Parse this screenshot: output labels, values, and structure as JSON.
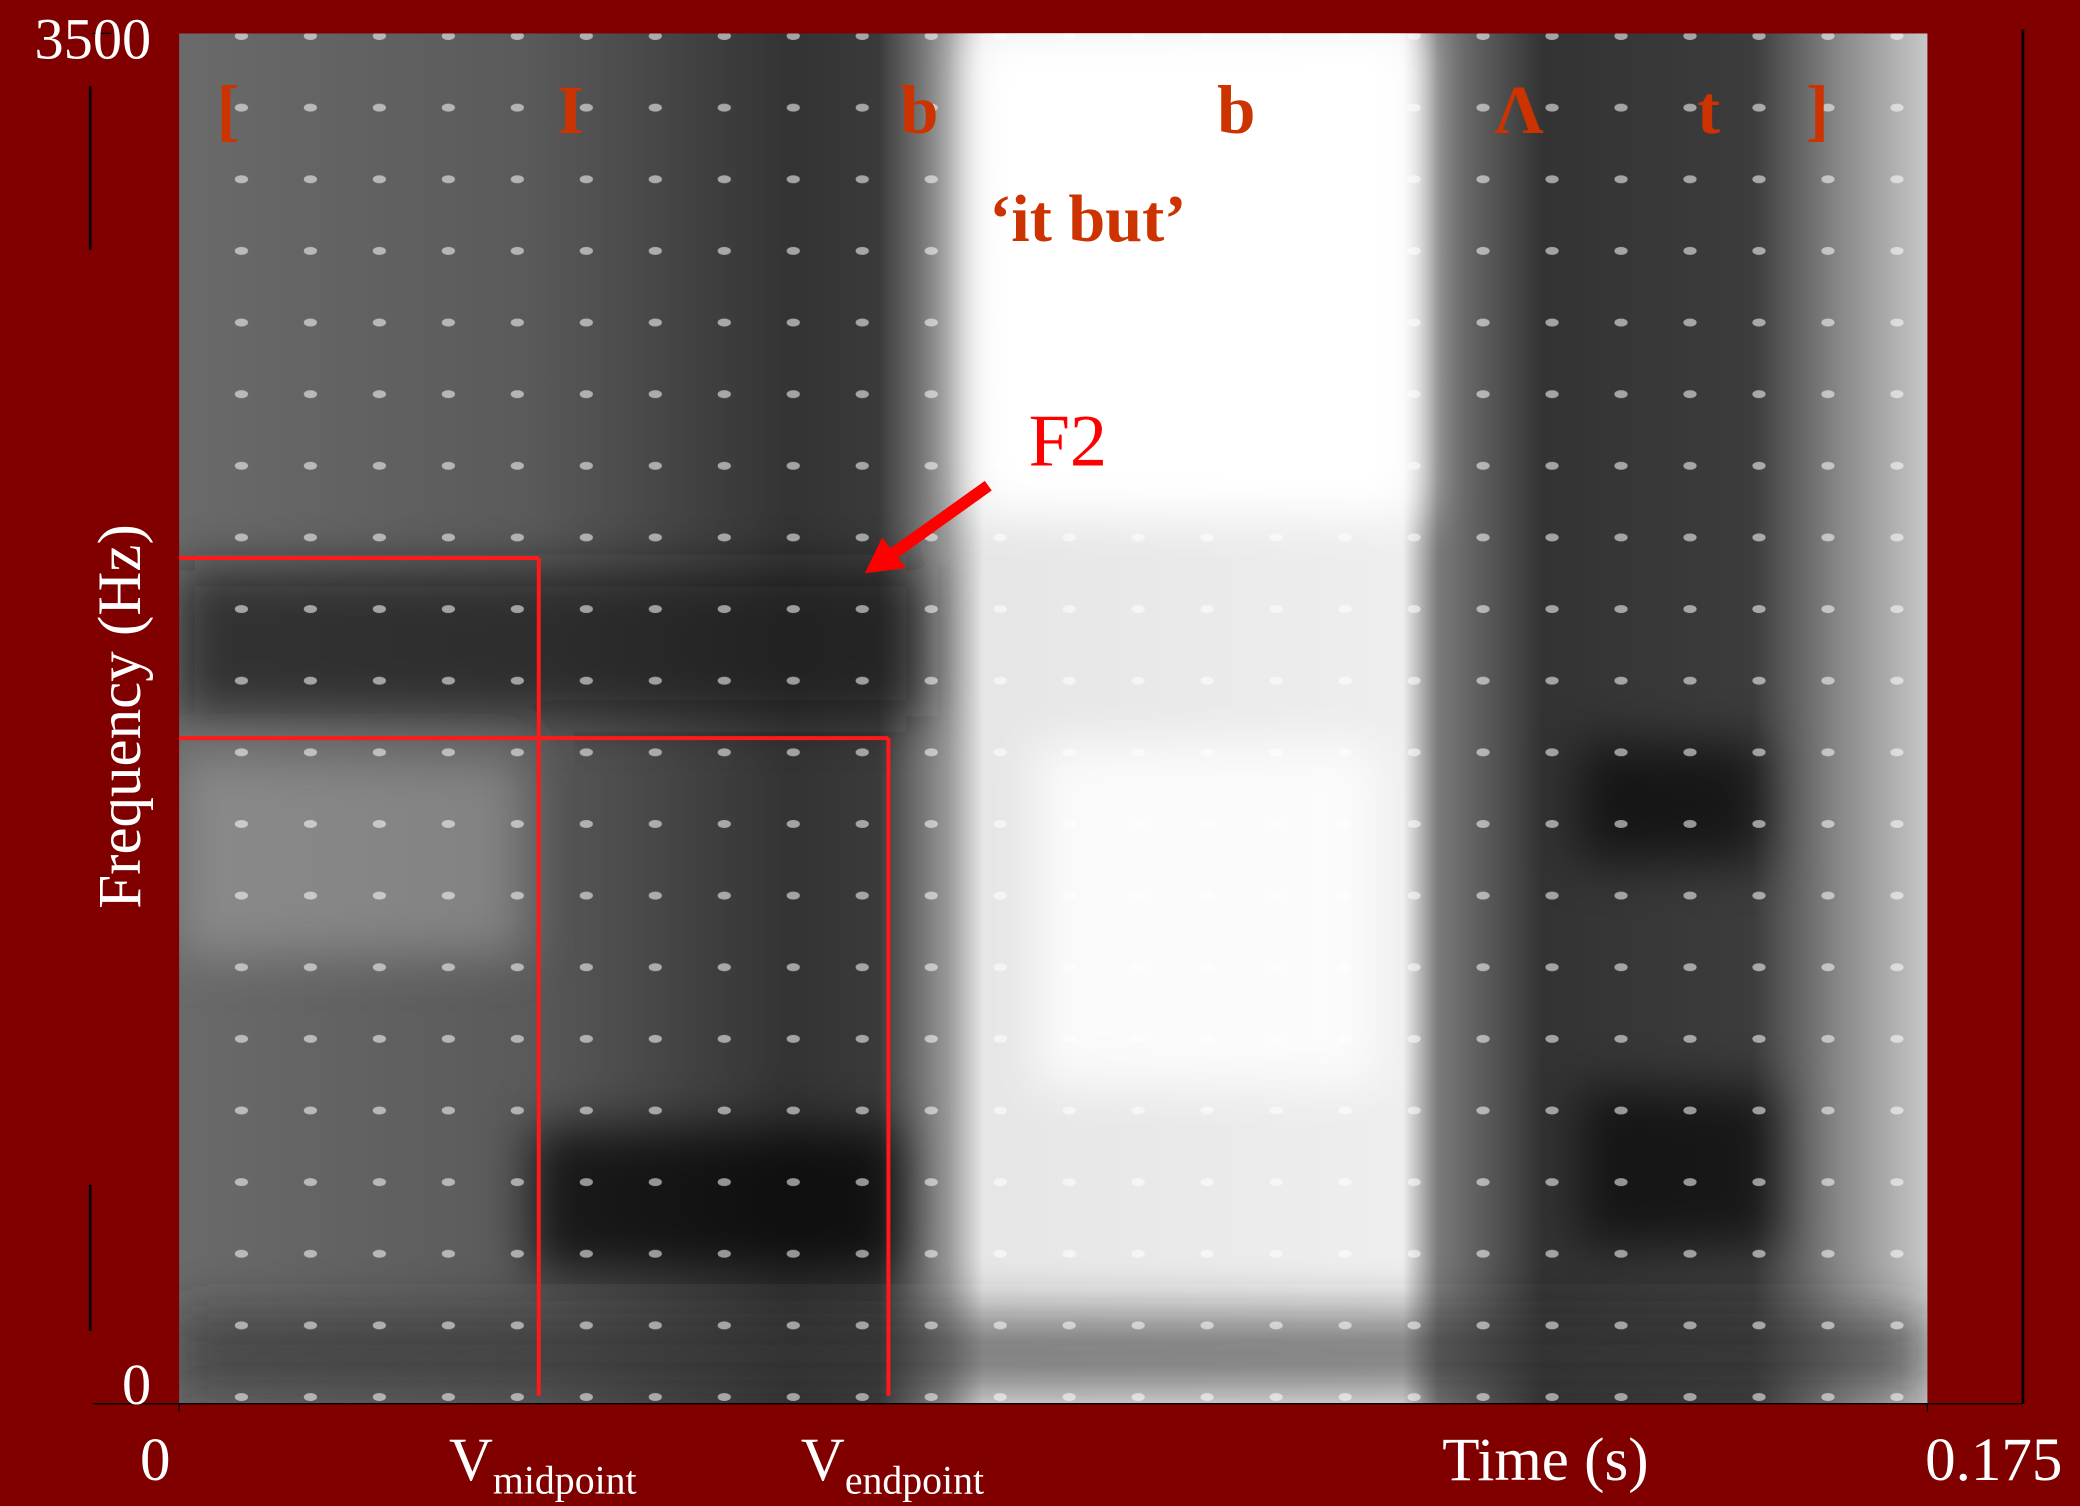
{
  "chart_data": {
    "type": "spectrogram",
    "title": "‘it but’",
    "x_label": "Time (s)",
    "y_label": "Frequency (Hz)",
    "xlim": [
      0,
      0.175
    ],
    "ylim": [
      0,
      3500
    ],
    "xticks": [
      0,
      0.175
    ],
    "yticks": [
      0,
      3500
    ],
    "segments": [
      "[",
      "I",
      "b",
      "b",
      "Λ",
      "t",
      "]"
    ],
    "formant_label": "F2",
    "markers": [
      {
        "name": "V",
        "subscript": "midpoint",
        "x": 0.036,
        "y": 2160
      },
      {
        "name": "V",
        "subscript": "endpoint",
        "x": 0.071,
        "y": 1700
      }
    ],
    "marker_color": "#ff1a1a",
    "segment_color": "#cc3300"
  }
}
